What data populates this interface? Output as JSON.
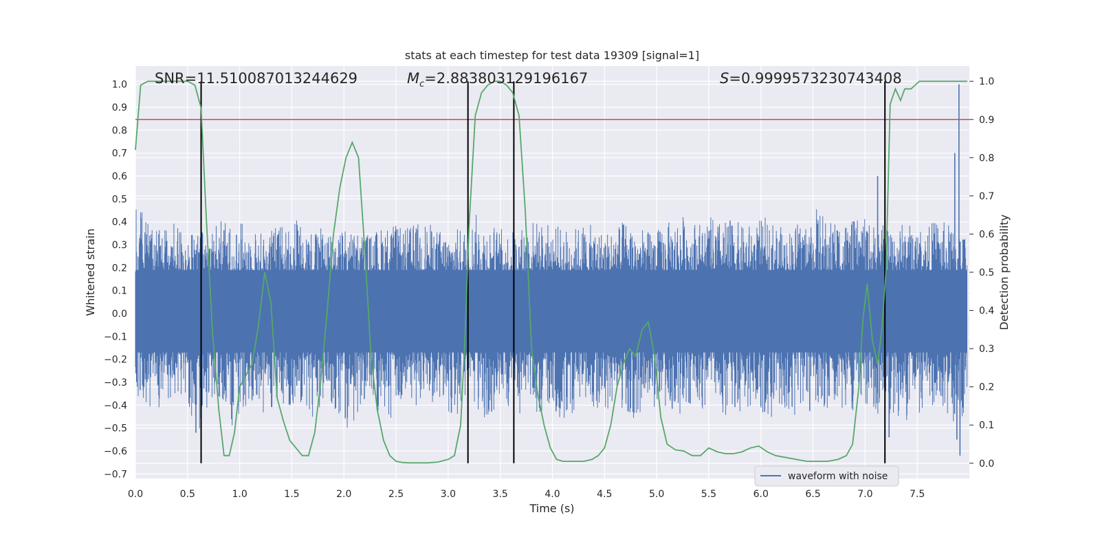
{
  "chart_data": {
    "type": "line",
    "title": "stats at each timestep for test data 19309 [signal=1]",
    "xlabel": "Time (s)",
    "ylabel_left": "Whitened strain",
    "ylabel_right": "Detection probability",
    "xlim": [
      0.0,
      8.0
    ],
    "ylim_left": [
      -0.72,
      1.08
    ],
    "ylim_right": [
      -0.04,
      1.04
    ],
    "xticks": [
      "0.0",
      "0.5",
      "1.0",
      "1.5",
      "2.0",
      "2.5",
      "3.0",
      "3.5",
      "4.0",
      "4.5",
      "5.0",
      "5.5",
      "6.0",
      "6.5",
      "7.0",
      "7.5"
    ],
    "xtick_values": [
      0.0,
      0.5,
      1.0,
      1.5,
      2.0,
      2.5,
      3.0,
      3.5,
      4.0,
      4.5,
      5.0,
      5.5,
      6.0,
      6.5,
      7.0,
      7.5
    ],
    "yticks_left": [
      "−0.7",
      "−0.6",
      "−0.5",
      "−0.4",
      "−0.3",
      "−0.2",
      "−0.1",
      "0.0",
      "0.1",
      "0.2",
      "0.3",
      "0.4",
      "0.5",
      "0.6",
      "0.7",
      "0.8",
      "0.9",
      "1.0"
    ],
    "ytick_values_left": [
      -0.7,
      -0.6,
      -0.5,
      -0.4,
      -0.3,
      -0.2,
      -0.1,
      0.0,
      0.1,
      0.2,
      0.3,
      0.4,
      0.5,
      0.6,
      0.7,
      0.8,
      0.9,
      1.0
    ],
    "yticks_right": [
      "0.0",
      "0.1",
      "0.2",
      "0.3",
      "0.4",
      "0.5",
      "0.6",
      "0.7",
      "0.8",
      "0.9",
      "1.0"
    ],
    "ytick_values_right": [
      0.0,
      0.1,
      0.2,
      0.3,
      0.4,
      0.5,
      0.6,
      0.7,
      0.8,
      0.9,
      1.0
    ],
    "annotations": {
      "snr": "SNR=11.510087013244629",
      "mc_symbol": "M",
      "mc_sub": "c",
      "mc_value": "=2.883803129196167",
      "s_symbol": "S",
      "s_value": "=0.9999573230743408"
    },
    "threshold_right": 0.9,
    "vertical_lines_s": [
      0.63,
      3.19,
      3.63,
      7.19
    ],
    "legend": {
      "label": "waveform with noise",
      "position": "lower-right"
    },
    "series": [
      {
        "name": "waveform with noise",
        "axis": "left",
        "color": "#4c72b0",
        "description": "noisy whitened strain, roughly within ±0.3 with spikes to about ±0.5; large spikes near 7.9 s reaching 1.0 and −0.62",
        "envelope_upper": [
          0.52,
          0.42,
          0.36,
          0.38,
          0.4,
          0.35,
          0.36,
          0.38,
          0.42,
          0.38,
          0.4,
          0.37,
          0.36,
          0.38,
          0.4,
          0.44,
          0.39,
          0.36,
          0.4,
          0.38,
          0.37,
          0.36,
          0.35,
          0.38,
          0.4,
          0.37,
          0.39,
          0.41,
          0.38,
          0.36,
          0.37,
          0.38,
          0.44,
          0.4,
          0.38,
          0.36,
          0.37,
          0.42,
          0.4,
          0.39,
          0.38,
          0.37,
          0.4,
          0.38,
          0.36,
          0.39,
          0.41,
          0.38,
          0.36,
          0.37,
          0.4,
          0.44,
          0.42,
          0.4,
          0.42,
          0.4,
          0.42,
          0.38,
          0.4,
          0.42,
          0.4,
          0.36,
          0.4,
          0.42,
          0.47,
          0.4,
          0.43,
          0.4,
          0.42,
          0.4,
          0.39,
          0.38,
          0.4,
          0.4,
          0.36,
          0.42,
          0.4,
          0.38,
          0.34
        ],
        "envelope_lower": [
          -0.35,
          -0.4,
          -0.45,
          -0.38,
          -0.36,
          -0.42,
          -0.52,
          -0.4,
          -0.36,
          -0.5,
          -0.42,
          -0.38,
          -0.46,
          -0.4,
          -0.44,
          -0.38,
          -0.42,
          -0.48,
          -0.4,
          -0.44,
          -0.56,
          -0.42,
          -0.4,
          -0.44,
          -0.5,
          -0.4,
          -0.42,
          -0.38,
          -0.4,
          -0.42,
          -0.46,
          -0.4,
          -0.44,
          -0.52,
          -0.4,
          -0.42,
          -0.44,
          -0.4,
          -0.46,
          -0.42,
          -0.48,
          -0.44,
          -0.4,
          -0.42,
          -0.46,
          -0.4,
          -0.42,
          -0.48,
          -0.44,
          -0.4,
          -0.42,
          -0.44,
          -0.4,
          -0.42,
          -0.4,
          -0.44,
          -0.48,
          -0.42,
          -0.4,
          -0.44,
          -0.48,
          -0.42,
          -0.46,
          -0.44,
          -0.4,
          -0.42,
          -0.42,
          -0.46,
          -0.4,
          -0.42,
          -0.45,
          -0.44,
          -0.52,
          -0.42,
          -0.45,
          -0.4,
          -0.48,
          -0.5,
          -0.42
        ],
        "spikes": [
          [
            0.58,
            -0.52
          ],
          [
            7.12,
            0.6
          ],
          [
            7.23,
            -0.54
          ],
          [
            7.86,
            0.7
          ],
          [
            7.88,
            -0.55
          ],
          [
            7.9,
            1.0
          ],
          [
            7.91,
            -0.62
          ]
        ]
      },
      {
        "name": "detection probability",
        "axis": "right",
        "color": "#55a868",
        "x": [
          0.0,
          0.05,
          0.12,
          0.2,
          0.3,
          0.4,
          0.5,
          0.57,
          0.63,
          0.68,
          0.74,
          0.8,
          0.85,
          0.9,
          0.95,
          1.0,
          1.06,
          1.12,
          1.18,
          1.24,
          1.3,
          1.36,
          1.42,
          1.48,
          1.54,
          1.6,
          1.66,
          1.72,
          1.78,
          1.84,
          1.9,
          1.96,
          2.02,
          2.08,
          2.14,
          2.2,
          2.26,
          2.32,
          2.38,
          2.44,
          2.5,
          2.56,
          2.62,
          2.7,
          2.8,
          2.9,
          3.0,
          3.06,
          3.12,
          3.16,
          3.2,
          3.26,
          3.32,
          3.38,
          3.44,
          3.5,
          3.56,
          3.62,
          3.68,
          3.74,
          3.8,
          3.86,
          3.92,
          3.98,
          4.04,
          4.1,
          4.2,
          4.3,
          4.38,
          4.44,
          4.5,
          4.56,
          4.62,
          4.68,
          4.74,
          4.8,
          4.86,
          4.92,
          4.98,
          5.04,
          5.1,
          5.18,
          5.26,
          5.34,
          5.42,
          5.5,
          5.58,
          5.66,
          5.74,
          5.82,
          5.9,
          5.98,
          6.06,
          6.14,
          6.24,
          6.34,
          6.44,
          6.54,
          6.64,
          6.74,
          6.82,
          6.88,
          6.94,
          6.98,
          7.02,
          7.07,
          7.12,
          7.16,
          7.2,
          7.24,
          7.29,
          7.34,
          7.38,
          7.44,
          7.52,
          7.6,
          7.7,
          7.8,
          7.9,
          7.98
        ],
        "y": [
          0.82,
          0.99,
          1.0,
          1.0,
          1.0,
          1.0,
          1.0,
          0.99,
          0.93,
          0.64,
          0.34,
          0.14,
          0.02,
          0.02,
          0.08,
          0.2,
          0.23,
          0.26,
          0.36,
          0.5,
          0.42,
          0.17,
          0.11,
          0.06,
          0.04,
          0.02,
          0.02,
          0.08,
          0.22,
          0.4,
          0.6,
          0.72,
          0.8,
          0.84,
          0.8,
          0.56,
          0.28,
          0.14,
          0.06,
          0.02,
          0.005,
          0.002,
          0.001,
          0.001,
          0.001,
          0.003,
          0.01,
          0.02,
          0.1,
          0.32,
          0.62,
          0.91,
          0.97,
          0.99,
          1.0,
          1.0,
          0.99,
          0.97,
          0.91,
          0.66,
          0.3,
          0.18,
          0.1,
          0.04,
          0.01,
          0.005,
          0.005,
          0.005,
          0.01,
          0.02,
          0.04,
          0.1,
          0.2,
          0.26,
          0.3,
          0.28,
          0.35,
          0.37,
          0.28,
          0.12,
          0.05,
          0.035,
          0.032,
          0.02,
          0.02,
          0.04,
          0.03,
          0.025,
          0.025,
          0.03,
          0.04,
          0.045,
          0.03,
          0.02,
          0.015,
          0.01,
          0.005,
          0.005,
          0.005,
          0.01,
          0.02,
          0.05,
          0.2,
          0.38,
          0.47,
          0.32,
          0.26,
          0.35,
          0.5,
          0.94,
          0.98,
          0.95,
          0.98,
          0.98,
          1.0,
          1.0,
          1.0,
          1.0,
          1.0,
          1.0
        ]
      }
    ]
  }
}
